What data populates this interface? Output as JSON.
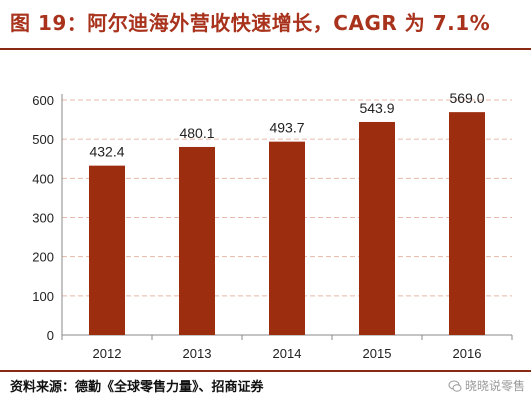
{
  "title": "图 19：阿尔迪海外营收快速增长，CAGR 为 7.1%",
  "source": "资料来源：德勤《全球零售力量》、招商证券",
  "watermark": "晓晓说零售",
  "colors": {
    "bar": "#9c2d0f",
    "title": "#a8321c",
    "rule": "#8a2a14",
    "grid": "#e8b8a8"
  },
  "chart_data": {
    "type": "bar",
    "categories": [
      "2012",
      "2013",
      "2014",
      "2015",
      "2016"
    ],
    "values": [
      432.4,
      480.1,
      493.7,
      543.9,
      569.0
    ],
    "value_labels": [
      "432.4",
      "480.1",
      "493.7",
      "543.9",
      "569.0"
    ],
    "ylim": [
      0,
      600
    ],
    "yticks": [
      0,
      100,
      200,
      300,
      400,
      500,
      600
    ],
    "grid": true,
    "legend": "none"
  }
}
